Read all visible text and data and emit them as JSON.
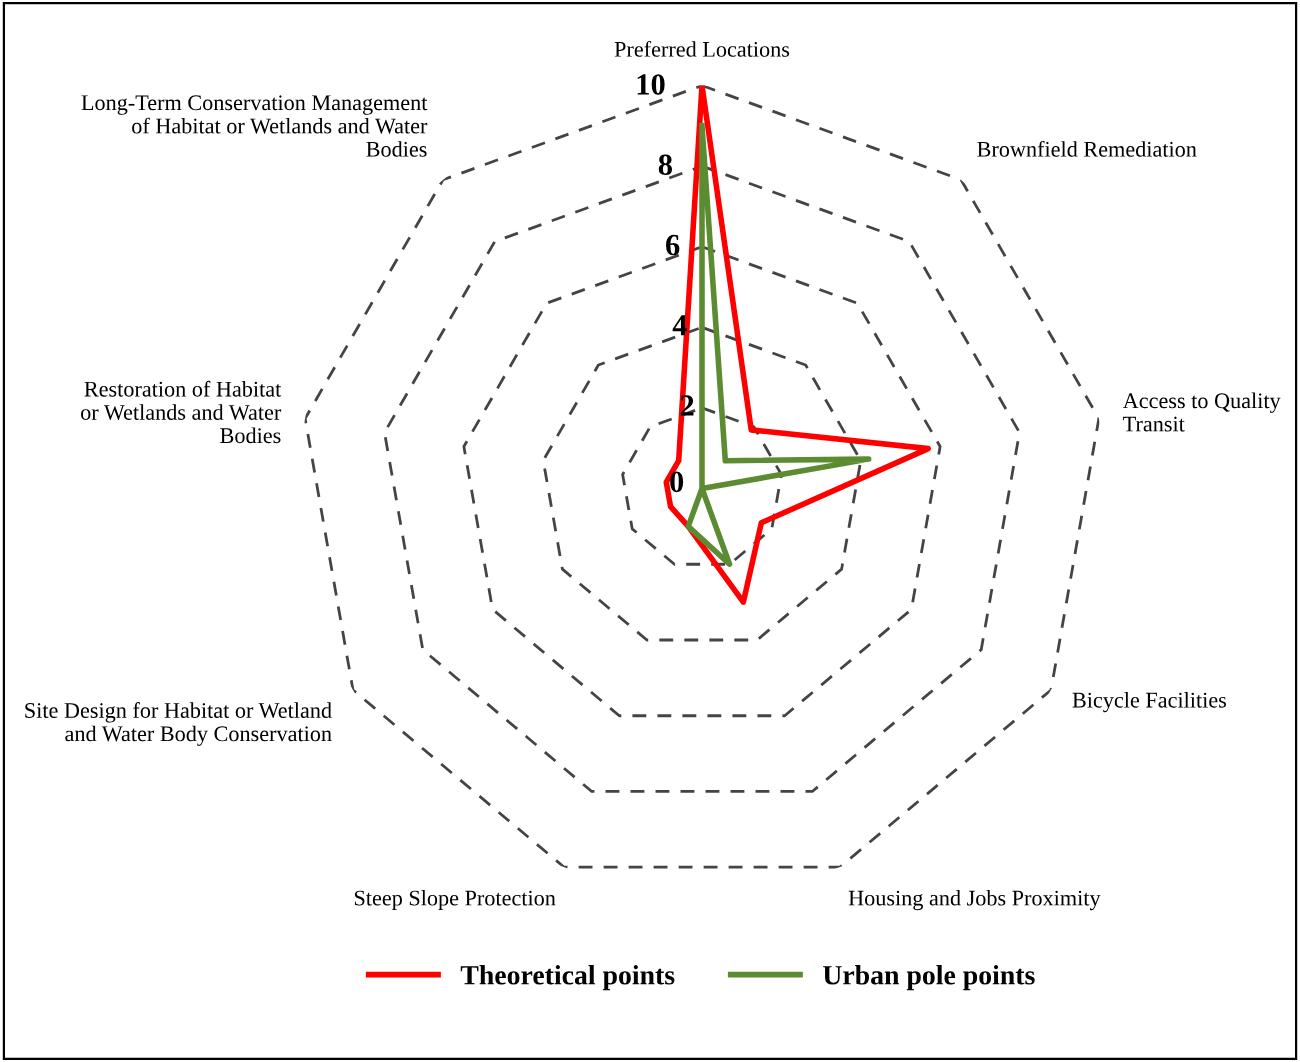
{
  "chart_data": {
    "type": "radar",
    "categories": [
      "Preferred Locations",
      "Brownfield Remediation",
      "Access to Quality Transit",
      "Bicycle Facilities",
      "Housing and Jobs Proximity",
      "Steep Slope Protection",
      "Site Design for Habitat or Wetland and Water Body Conservation",
      "Restoration of Habitat or Wetlands and Water Bodies",
      "Long-Term Conservation Management of Habitat or Wetlands and Water Bodies"
    ],
    "series": [
      {
        "name": "Theoretical points",
        "color": "#ff0000",
        "values": [
          10,
          1.9,
          5.7,
          1.7,
          3.0,
          1.0,
          0.9,
          0.9,
          0.9
        ]
      },
      {
        "name": "Urban pole points",
        "color": "#5b8c32",
        "values": [
          9,
          0.9,
          4.2,
          0,
          2.0,
          1.0,
          0,
          0,
          0
        ]
      }
    ],
    "ylim": [
      0,
      10
    ],
    "yticks": [
      0,
      2,
      4,
      6,
      8,
      10
    ],
    "grid": true,
    "legend": "bottom",
    "marker": "none",
    "line_style": "solid"
  }
}
